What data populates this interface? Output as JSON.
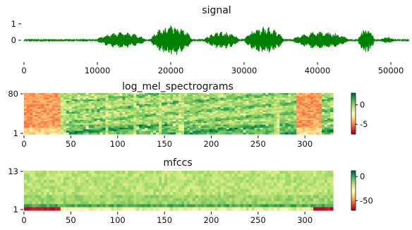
{
  "chart_data": [
    {
      "type": "line",
      "title": "signal",
      "color": "#008000",
      "xlim": [
        0,
        52500
      ],
      "ylim": [
        -1.25,
        1.25
      ],
      "xticks": [
        0,
        10000,
        20000,
        30000,
        40000,
        50000
      ],
      "yticks": [
        1,
        0
      ],
      "bursts": [
        {
          "start": 9800,
          "end": 16800,
          "amp": 0.5
        },
        {
          "start": 17200,
          "end": 23000,
          "amp": 0.95
        },
        {
          "start": 24500,
          "end": 29500,
          "amp": 0.55
        },
        {
          "start": 30000,
          "end": 35500,
          "amp": 0.85
        },
        {
          "start": 36500,
          "end": 44500,
          "amp": 0.55
        },
        {
          "start": 45500,
          "end": 47800,
          "amp": 0.75
        },
        {
          "start": 48500,
          "end": 50500,
          "amp": 0.2
        }
      ]
    },
    {
      "type": "heatmap",
      "title": "log_mel_spectrograms",
      "colormap": "RdYlGn",
      "xlim": [
        0,
        330
      ],
      "ylim": [
        1,
        80
      ],
      "xticks": [
        0,
        50,
        100,
        150,
        200,
        250,
        300
      ],
      "yticks": [
        80,
        1
      ],
      "colorbar_ticks": [
        0,
        -5
      ],
      "colorbar_range": [
        -7.5,
        3
      ]
    },
    {
      "type": "heatmap",
      "title": "mfccs",
      "colormap": "RdYlGn",
      "xlim": [
        0,
        330
      ],
      "ylim": [
        1,
        13
      ],
      "xticks": [
        0,
        50,
        100,
        150,
        200,
        250,
        300
      ],
      "yticks": [
        13,
        1
      ],
      "colorbar_ticks": [
        0,
        -50
      ],
      "colorbar_range": [
        -70,
        12
      ]
    }
  ]
}
